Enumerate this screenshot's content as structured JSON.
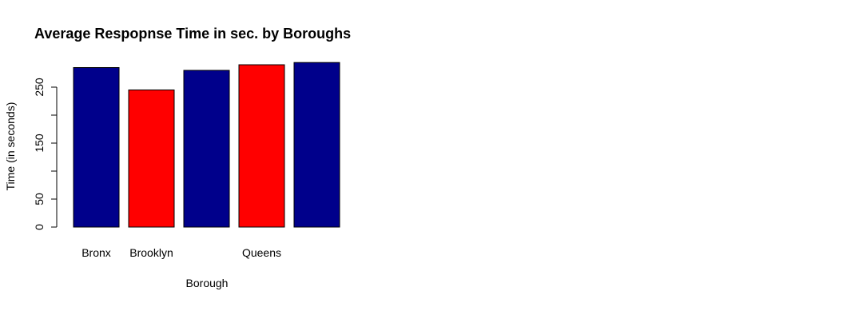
{
  "chart_data": {
    "type": "bar",
    "title": "Average Respopnse Time in sec. by Boroughs",
    "xlabel": "Borough",
    "ylabel": "Time (in seconds)",
    "categories": [
      "Bronx",
      "Brooklyn",
      "",
      "Queens",
      ""
    ],
    "values": [
      285,
      245,
      280,
      290,
      294
    ],
    "colors": [
      "#00008B",
      "#FF0000",
      "#00008B",
      "#FF0000",
      "#00008B"
    ],
    "ylim": [
      0,
      300
    ],
    "yticks": [
      0,
      50,
      100,
      150,
      200,
      250
    ],
    "ytick_labels": [
      "0",
      "50",
      "",
      "150",
      "",
      "250"
    ],
    "grid": false,
    "legend": "none"
  }
}
